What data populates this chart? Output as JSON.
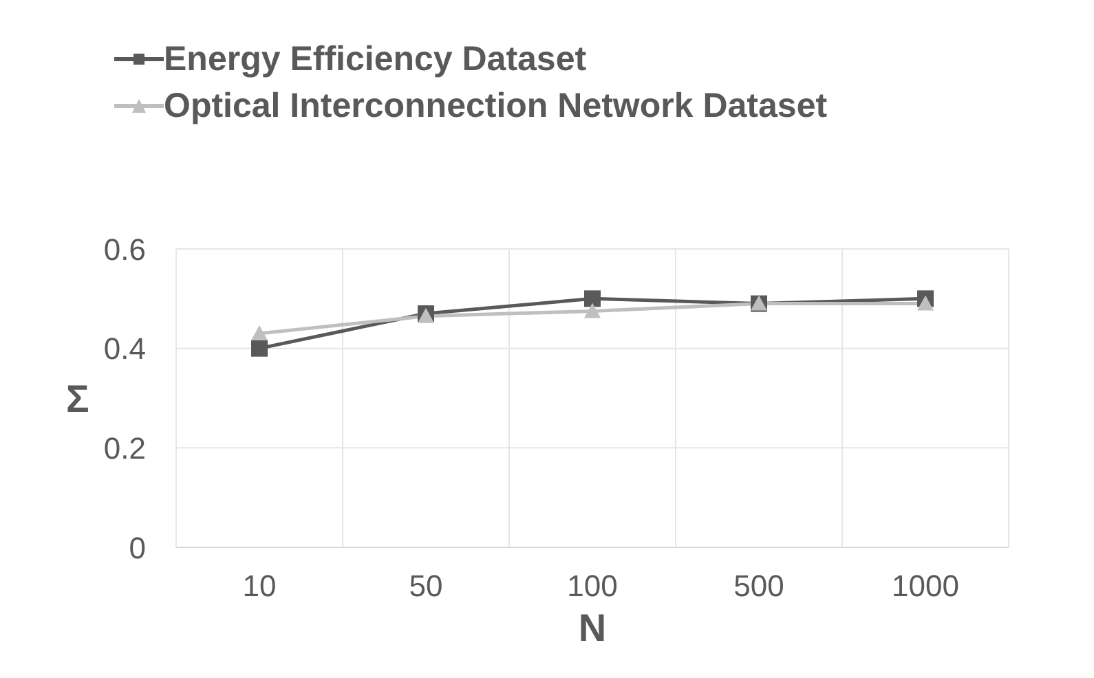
{
  "chart_data": {
    "type": "line",
    "xlabel": "N",
    "ylabel": "Σ",
    "categories": [
      "10",
      "50",
      "100",
      "500",
      "1000"
    ],
    "series": [
      {
        "name": "Energy Efficiency Dataset",
        "color": "#595959",
        "marker": "square",
        "values": [
          0.4,
          0.47,
          0.5,
          0.49,
          0.5
        ]
      },
      {
        "name": "Optical Interconnection Network Dataset",
        "color": "#bfbfbf",
        "marker": "triangle",
        "values": [
          0.43,
          0.465,
          0.475,
          0.49,
          0.49
        ]
      }
    ],
    "ylim": [
      0,
      0.6
    ],
    "yticks": [
      0,
      0.2,
      0.4,
      0.6
    ],
    "grid": true,
    "legend": "top left"
  }
}
